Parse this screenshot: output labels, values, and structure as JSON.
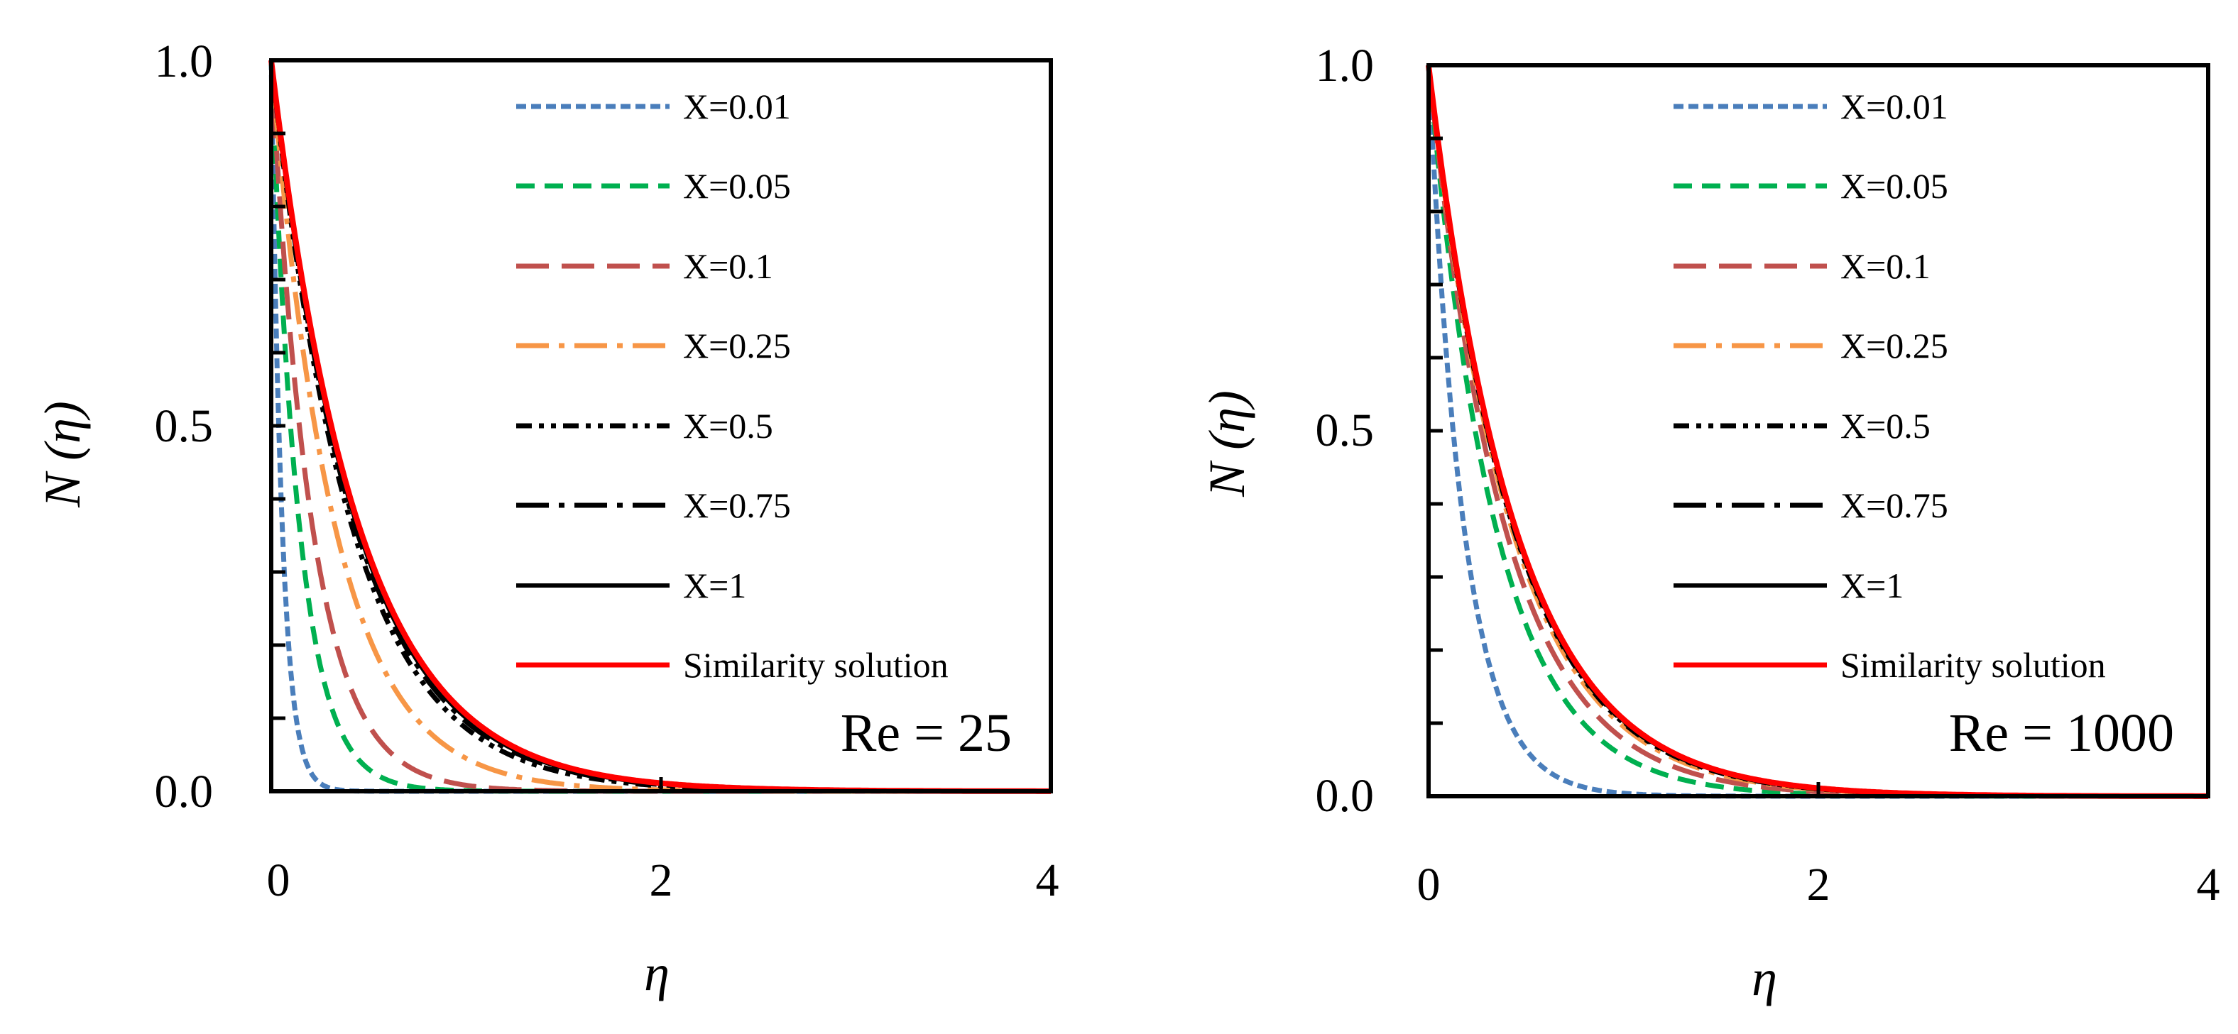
{
  "chart_data": [
    {
      "type": "line",
      "panel": "left",
      "annotation": "Re = 25",
      "xlabel": "η",
      "ylabel": "N (η)",
      "xlim": [
        0,
        4
      ],
      "ylim": [
        0,
        1
      ],
      "xticks": [
        0,
        2,
        4
      ],
      "yticks": [
        0,
        0.5,
        1
      ],
      "xtick_labels": [
        "0",
        "2",
        "4"
      ],
      "ytick_labels": [
        "0.0",
        "0.5",
        "1.0"
      ],
      "legend_position": "top-right",
      "series": [
        {
          "name": "X=0.01",
          "color": "#4a7ebb",
          "dash": "short-dash",
          "k": 18.0
        },
        {
          "name": "X=0.05",
          "color": "#00b050",
          "dash": "dash",
          "k": 7.0
        },
        {
          "name": "X=0.1",
          "color": "#c0504d",
          "dash": "long-dash",
          "k": 4.8
        },
        {
          "name": "X=0.25",
          "color": "#f79646",
          "dash": "long-dash-dot",
          "k": 3.1
        },
        {
          "name": "X=0.5",
          "color": "#000000",
          "dash": "dash-dot-dot",
          "k": 2.45
        },
        {
          "name": "X=0.75",
          "color": "#000000",
          "dash": "long-dash-dot",
          "k": 2.35
        },
        {
          "name": "X=1",
          "color": "#000000",
          "dash": "solid",
          "k": 2.3
        },
        {
          "name": "Similarity solution",
          "color": "#ff0000",
          "dash": "solid",
          "k": 2.25
        }
      ]
    },
    {
      "type": "line",
      "panel": "right",
      "annotation": "Re = 1000",
      "xlabel": "η",
      "ylabel": "N (η)",
      "xlim": [
        0,
        4
      ],
      "ylim": [
        0,
        1
      ],
      "xticks": [
        0,
        2,
        4
      ],
      "yticks": [
        0,
        0.5,
        1
      ],
      "xtick_labels": [
        "0",
        "2",
        "4"
      ],
      "ytick_labels": [
        "0.0",
        "0.5",
        "1.0"
      ],
      "legend_position": "top-right",
      "series": [
        {
          "name": "X=0.01",
          "color": "#4a7ebb",
          "dash": "short-dash",
          "k": 5.5
        },
        {
          "name": "X=0.05",
          "color": "#00b050",
          "dash": "dash",
          "k": 2.9
        },
        {
          "name": "X=0.1",
          "color": "#c0504d",
          "dash": "long-dash",
          "k": 2.55
        },
        {
          "name": "X=0.25",
          "color": "#f79646",
          "dash": "long-dash-dot",
          "k": 2.35
        },
        {
          "name": "X=0.5",
          "color": "#000000",
          "dash": "dash-dot-dot",
          "k": 2.3
        },
        {
          "name": "X=0.75",
          "color": "#000000",
          "dash": "long-dash-dot",
          "k": 2.28
        },
        {
          "name": "X=1",
          "color": "#000000",
          "dash": "solid",
          "k": 2.27
        },
        {
          "name": "Similarity solution",
          "color": "#ff0000",
          "dash": "solid",
          "k": 2.25
        }
      ]
    }
  ]
}
